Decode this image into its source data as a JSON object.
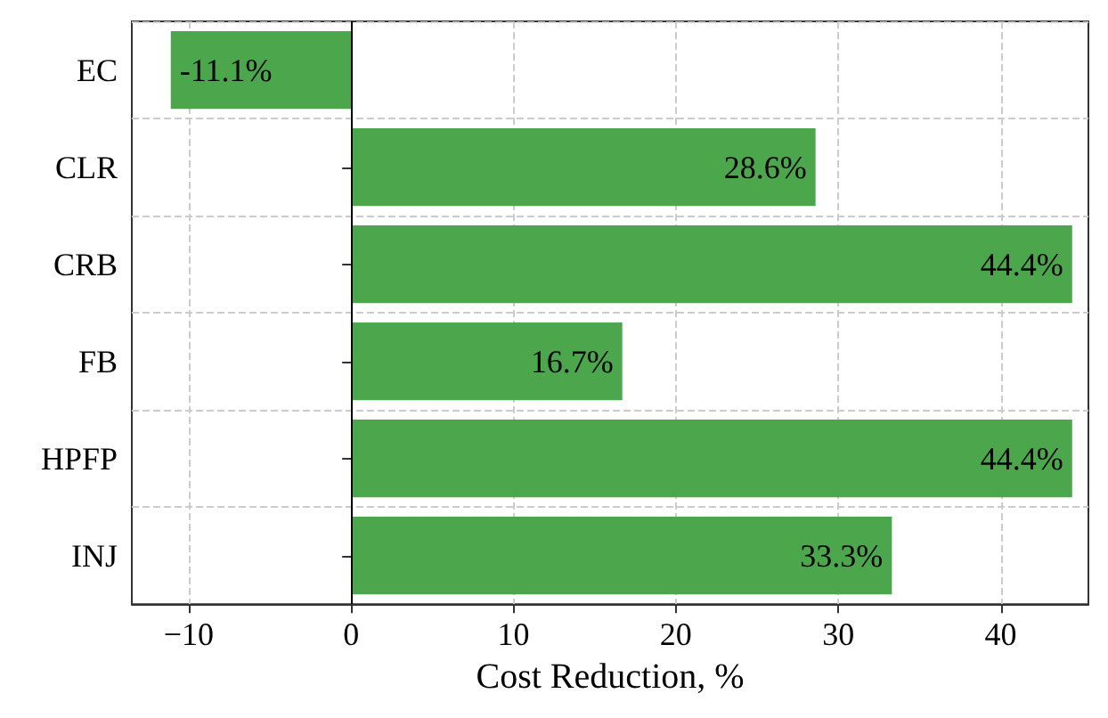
{
  "chart_data": {
    "type": "bar",
    "orientation": "horizontal",
    "xlabel": "Cost Reduction, %",
    "categories": [
      "EC",
      "CLR",
      "CRB",
      "FB",
      "HPFP",
      "INJ"
    ],
    "values": [
      -11.1,
      28.6,
      44.4,
      16.7,
      44.4,
      33.3
    ],
    "value_labels": [
      "-11.1%",
      "28.6%",
      "44.4%",
      "16.7%",
      "44.4%",
      "33.3%"
    ],
    "color": "#4ca64c",
    "xlim": [
      -13.5,
      45.4
    ],
    "xticks": [
      -10,
      0,
      10,
      20,
      30,
      40
    ],
    "grid": true,
    "ref_lines": [
      {
        "axis": "x",
        "value": 0,
        "color": "#000000",
        "line_style": "solid"
      }
    ]
  }
}
